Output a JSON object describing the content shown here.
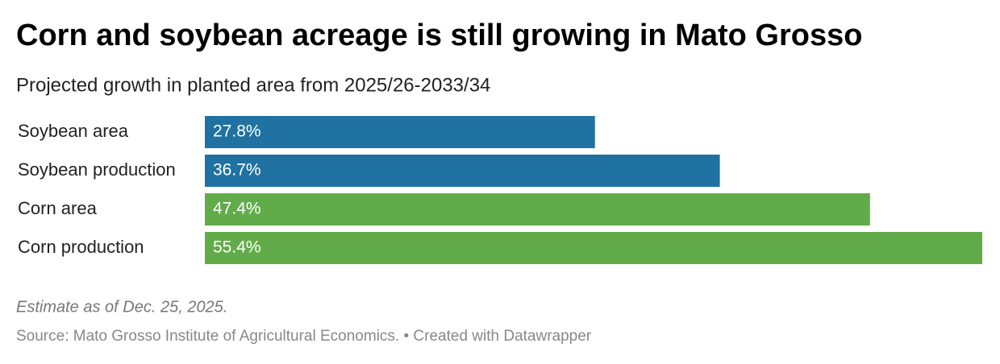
{
  "chart_data": {
    "type": "bar",
    "orientation": "horizontal",
    "title": "Corn and soybean acreage is still growing in Mato Grosso",
    "subtitle": "Projected growth in planted area from 2025/26-2033/34",
    "categories": [
      "Soybean area",
      "Soybean production",
      "Corn area",
      "Corn production"
    ],
    "values": [
      27.8,
      36.7,
      47.4,
      55.4
    ],
    "value_labels": [
      "27.8%",
      "36.7%",
      "47.4%",
      "55.4%"
    ],
    "colors": [
      "#1f72a1",
      "#1f72a1",
      "#62ab4a",
      "#62ab4a"
    ],
    "note": "Estimate as of Dec. 25, 2025.",
    "source": "Source: Mato Grosso Institute of Agricultural Economics. • Created with Datawrapper"
  }
}
